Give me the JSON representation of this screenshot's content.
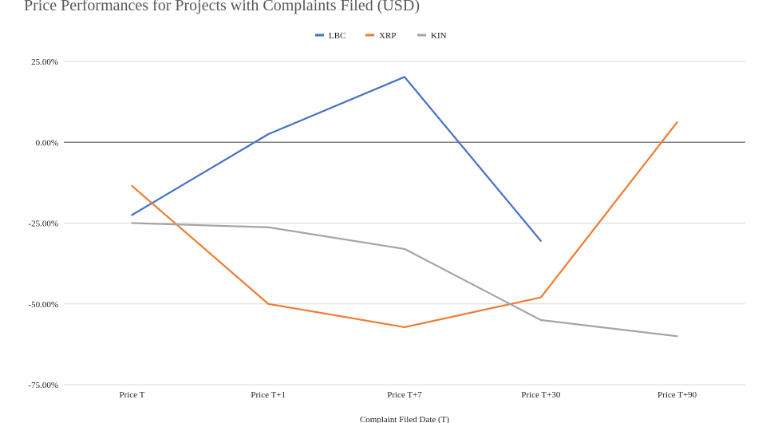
{
  "chart_data": {
    "type": "line",
    "title": "Price Performances for Projects with Complaints Filed (USD)",
    "xlabel": "Complaint Filed Date (T)",
    "ylabel": "",
    "categories": [
      "Price T",
      "Price T+1",
      "Price T+7",
      "Price T+30",
      "Price T+90"
    ],
    "ylim": [
      -75,
      25
    ],
    "yticks": [
      25,
      0,
      -25,
      -50,
      -75
    ],
    "ytick_labels": [
      "25.00%",
      "0.00%",
      "-25.00%",
      "-50.00%",
      "-75.00%"
    ],
    "grid": true,
    "legend_position": "top",
    "series": [
      {
        "name": "LBC",
        "color": "#4472c4",
        "values": [
          -22.5,
          2.5,
          20.2,
          -30.5,
          null
        ]
      },
      {
        "name": "XRP",
        "color": "#ed7d31",
        "values": [
          -13.5,
          -50.0,
          -57.2,
          -48.0,
          6.2
        ]
      },
      {
        "name": "KIN",
        "color": "#a5a5a5",
        "values": [
          -25.0,
          -26.3,
          -33.0,
          -55.0,
          -60.0
        ]
      }
    ]
  }
}
